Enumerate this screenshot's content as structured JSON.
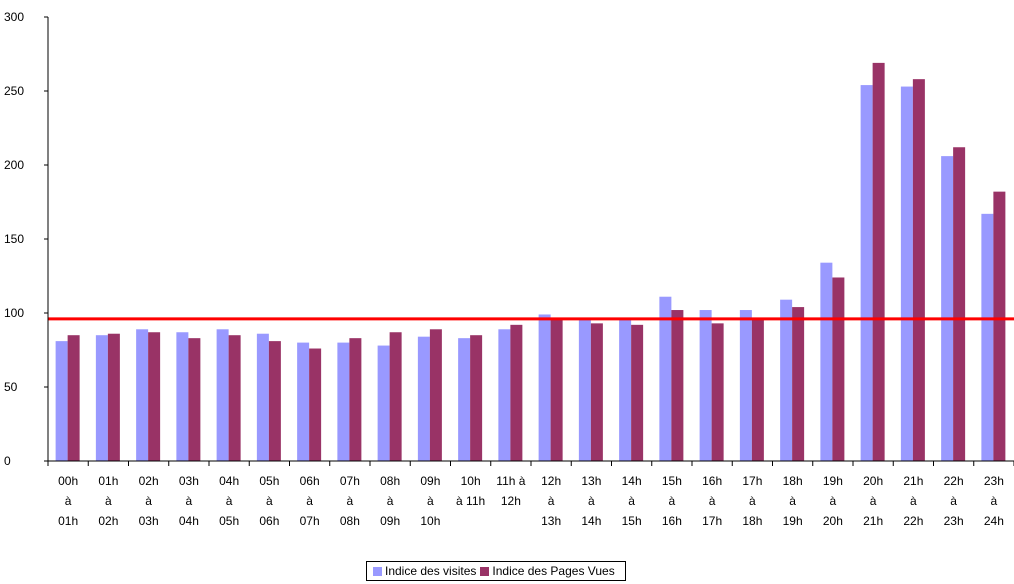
{
  "chart_data": {
    "type": "bar",
    "title": "",
    "xlabel": "",
    "ylabel": "",
    "ylim": [
      0,
      300
    ],
    "yticks": [
      0,
      50,
      100,
      150,
      200,
      250,
      300
    ],
    "grid": false,
    "legend_position": "bottom",
    "categories": [
      [
        "00h",
        "à",
        "01h"
      ],
      [
        "01h",
        "à",
        "02h"
      ],
      [
        "02h",
        "à",
        "03h"
      ],
      [
        "03h",
        "à",
        "04h"
      ],
      [
        "04h",
        "à",
        "05h"
      ],
      [
        "05h",
        "à",
        "06h"
      ],
      [
        "06h",
        "à",
        "07h"
      ],
      [
        "07h",
        "à",
        "08h"
      ],
      [
        "08h",
        "à",
        "09h"
      ],
      [
        "09h",
        "à",
        "10h"
      ],
      [
        "10h",
        "à 11h"
      ],
      [
        "11h à",
        "12h"
      ],
      [
        "12h",
        "à",
        "13h"
      ],
      [
        "13h",
        "à",
        "14h"
      ],
      [
        "14h",
        "à",
        "15h"
      ],
      [
        "15h",
        "à",
        "16h"
      ],
      [
        "16h",
        "à",
        "17h"
      ],
      [
        "17h",
        "à",
        "18h"
      ],
      [
        "18h",
        "à",
        "19h"
      ],
      [
        "19h",
        "à",
        "20h"
      ],
      [
        "20h",
        "à",
        "21h"
      ],
      [
        "21h",
        "à",
        "22h"
      ],
      [
        "22h",
        "à",
        "23h"
      ],
      [
        "23h",
        "à",
        "24h"
      ]
    ],
    "series": [
      {
        "name": "Indice des visites",
        "color": "#9999ff",
        "values": [
          81,
          85,
          89,
          87,
          89,
          86,
          80,
          80,
          78,
          84,
          83,
          89,
          99,
          96,
          96,
          111,
          102,
          102,
          109,
          134,
          254,
          253,
          206,
          167
        ]
      },
      {
        "name": "Indice des Pages Vues",
        "color": "#993366",
        "values": [
          85,
          86,
          87,
          83,
          85,
          81,
          76,
          83,
          87,
          89,
          85,
          92,
          96,
          93,
          92,
          102,
          93,
          96,
          104,
          124,
          269,
          258,
          212,
          182
        ]
      }
    ],
    "reference_line": {
      "value": 96,
      "color": "#ff0000"
    }
  }
}
